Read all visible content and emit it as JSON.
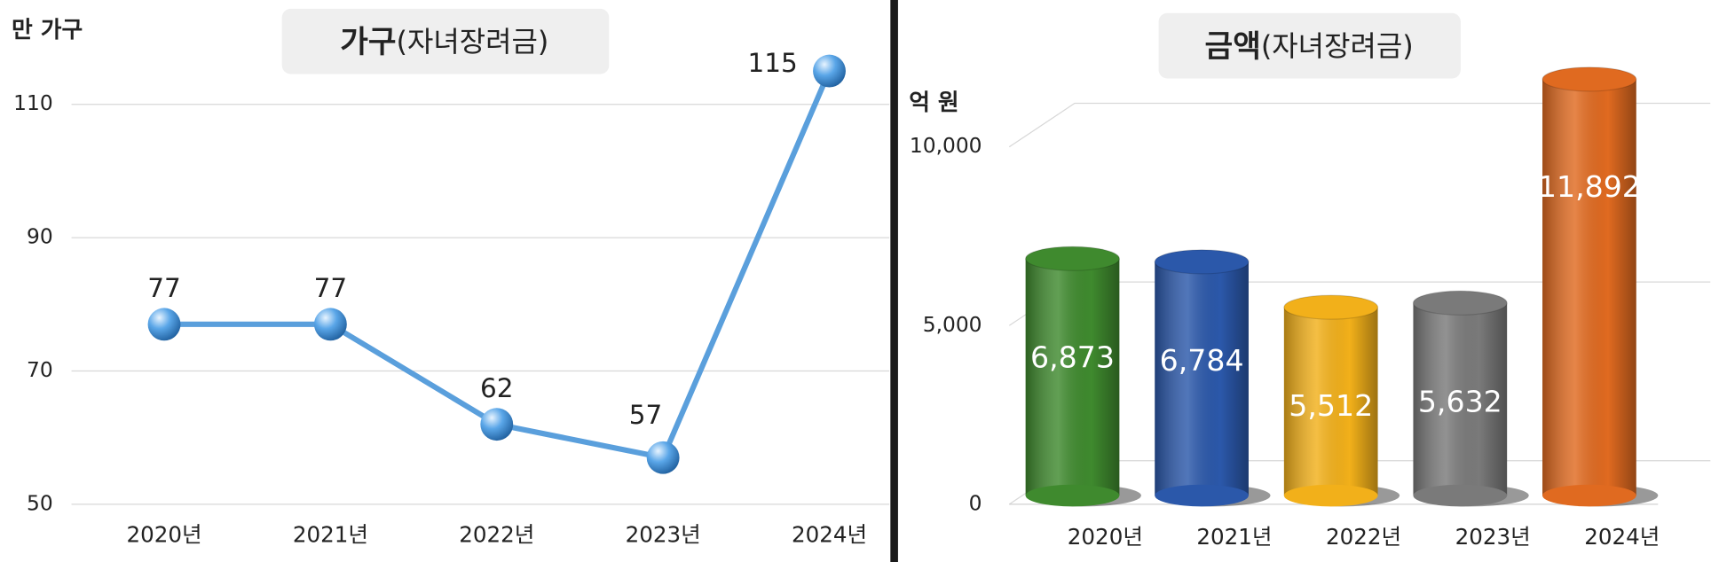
{
  "chart_data": [
    {
      "type": "line",
      "title": [
        "가구",
        "(자녀장려금)"
      ],
      "y_label": "만 가구",
      "categories": [
        "2020년",
        "2021년",
        "2022년",
        "2023년",
        "2024년"
      ],
      "values": [
        77,
        77,
        62,
        57,
        115
      ],
      "color": "#5a9fdc",
      "ylim": [
        50,
        125
      ],
      "yticks": [
        50,
        70,
        90,
        110
      ],
      "grid": true
    },
    {
      "type": "bar",
      "title": [
        "금액",
        "(자녀장려금)"
      ],
      "y_label": "억 원",
      "categories": [
        "2020년",
        "2021년",
        "2022년",
        "2023년",
        "2024년"
      ],
      "values": [
        6873,
        6784,
        5512,
        5632,
        11892
      ],
      "value_labels": [
        "6,873",
        "6,784",
        "5,512",
        "5,632",
        "11,892"
      ],
      "colors": [
        "#3f8a2e",
        "#2b58aa",
        "#f2b01a",
        "#7a7a7a",
        "#e06a20"
      ],
      "ylim": [
        0,
        13500
      ],
      "yticks": [
        0,
        {
          "value": 5000,
          "label": "5,000"
        },
        {
          "value": 10000,
          "label": "10,000"
        }
      ],
      "grid": true
    }
  ]
}
